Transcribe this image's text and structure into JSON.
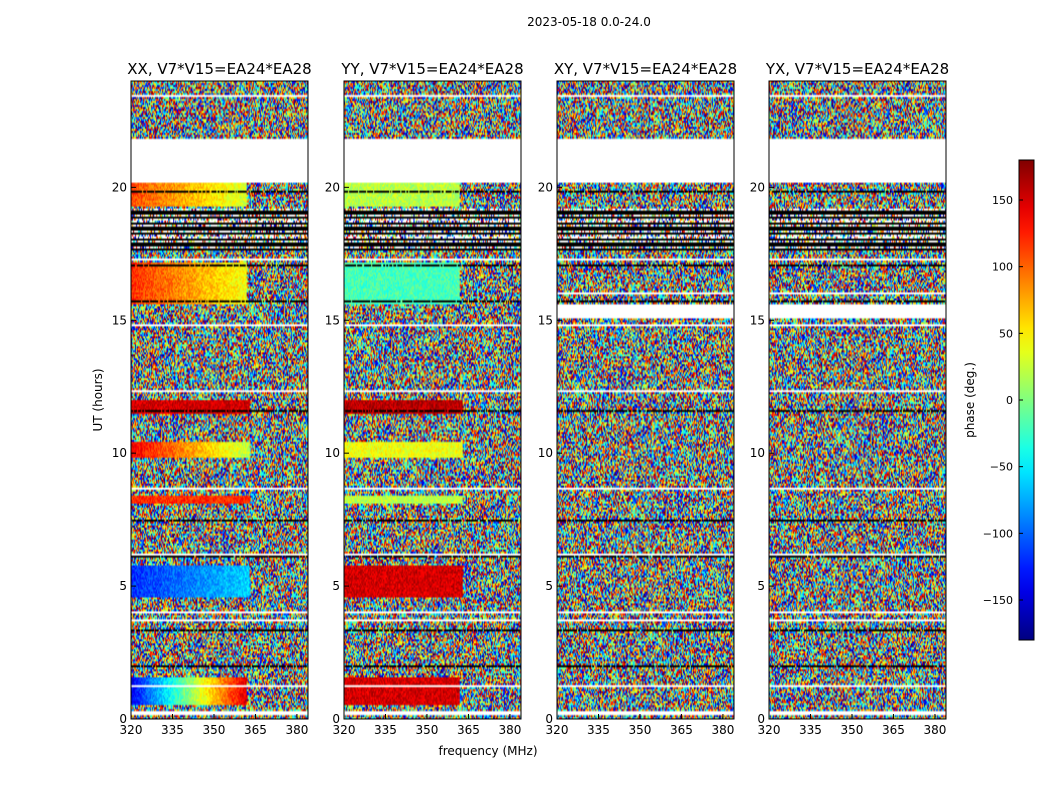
{
  "figure_title": "2023-05-18 0.0-24.0",
  "chart_data": {
    "type": "heatmap",
    "title": "2023-05-18 0.0-24.0",
    "xlabel": "frequency (MHz)",
    "ylabel": "UT (hours)",
    "xlim": [
      320,
      384
    ],
    "ylim": [
      0,
      24
    ],
    "xticks": [
      320,
      335,
      350,
      365,
      380
    ],
    "yticks": [
      0,
      5,
      10,
      15,
      20
    ],
    "xtick_labels": [
      "320",
      "335",
      "350",
      "365",
      "380"
    ],
    "ytick_labels": [
      "0",
      "5",
      "10",
      "15",
      "20"
    ],
    "colorbar": {
      "label": "phase (deg.)",
      "range": [
        -180,
        180
      ],
      "ticks": [
        150,
        100,
        50,
        0,
        -50,
        -100,
        -150
      ],
      "tick_labels": [
        "150",
        "100",
        "50",
        "0",
        "−50",
        "−100",
        "−150"
      ],
      "colormap": "jet"
    },
    "panels": [
      {
        "title": "XX, V7*V15=EA24*EA28",
        "coherent": true,
        "stronger": false
      },
      {
        "title": "YY, V7*V15=EA24*EA28",
        "coherent": true,
        "stronger": true
      },
      {
        "title": "XY, V7*V15=EA24*EA28",
        "coherent": false,
        "stronger": false
      },
      {
        "title": "YX, V7*V15=EA24*EA28",
        "coherent": false,
        "stronger": false
      }
    ],
    "flagged_ranges_hours": [
      [
        20.2,
        21.8
      ],
      [
        0.15,
        0.3
      ],
      [
        2.0,
        2.05
      ],
      [
        4.0,
        4.05
      ]
    ],
    "dense_flag_band_hours": [
      17.6,
      19.2
    ],
    "flagged_ranges_cross_hours": [
      [
        15.1,
        15.6
      ],
      [
        16.0,
        16.05
      ]
    ],
    "coherent_bands": [
      {
        "t0": 0.5,
        "t1": 1.6,
        "phase_low": -140,
        "phase_high": 150,
        "edge_mhz": 362,
        "yy_phase": 150
      },
      {
        "t0": 4.6,
        "t1": 5.8,
        "phase_low": -120,
        "phase_high": -60,
        "edge_mhz": 363,
        "yy_phase": 150
      },
      {
        "t0": 8.1,
        "t1": 8.4,
        "phase_low": 120,
        "phase_high": 120,
        "edge_mhz": 363,
        "yy_phase": 20
      },
      {
        "t0": 9.8,
        "t1": 10.4,
        "phase_low": 140,
        "phase_high": 20,
        "edge_mhz": 363,
        "yy_phase": 40
      },
      {
        "t0": 11.5,
        "t1": 12.0,
        "phase_low": 150,
        "phase_high": 150,
        "edge_mhz": 363,
        "yy_phase": 160
      },
      {
        "t0": 15.6,
        "t1": 17.2,
        "phase_low": 120,
        "phase_high": 40,
        "edge_mhz": 362,
        "yy_phase": -20
      },
      {
        "t0": 19.3,
        "t1": 20.2,
        "phase_low": 110,
        "phase_high": 30,
        "edge_mhz": 362,
        "yy_phase": 20
      }
    ]
  }
}
